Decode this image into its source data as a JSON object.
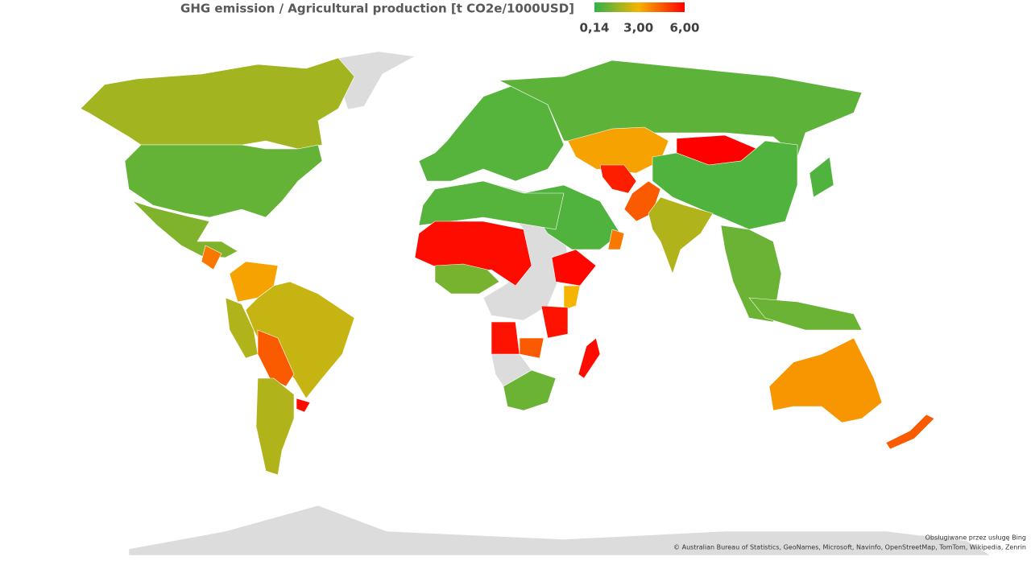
{
  "chart_data": {
    "type": "choropleth",
    "title": "GHG emission / Agricultural production [t CO2e/1000USD]",
    "scale_ticks": [
      {
        "value": 0.14,
        "label": "0,14"
      },
      {
        "value": 3.0,
        "label": "3,00"
      },
      {
        "value": 6.0,
        "label": "6,00"
      }
    ],
    "scale_colors": [
      "#2fb34a",
      "#f5b400",
      "#ff0000"
    ],
    "values": [
      1.8,
      0.9,
      1.3,
      4.0,
      3.3,
      2.3,
      2.0,
      4.5,
      2.0,
      5.8,
      0.7,
      0.8,
      3.3,
      6.0,
      0.6,
      5.5,
      4.5,
      2.0,
      0.6,
      4.0,
      0.7,
      5.8,
      1.2,
      5.9,
      3.0,
      5.7,
      5.7,
      4.5,
      1.0,
      5.8,
      1.0,
      1.0,
      0.6,
      3.5,
      4.5
    ],
    "attribution": [
      "Obsługiwane przez usługę Bing",
      "© Australian Bureau of Statistics, GeoNames, Microsoft, Navinfo, OpenStreetMap, TomTom, Wikipedia, Zenrin"
    ]
  }
}
